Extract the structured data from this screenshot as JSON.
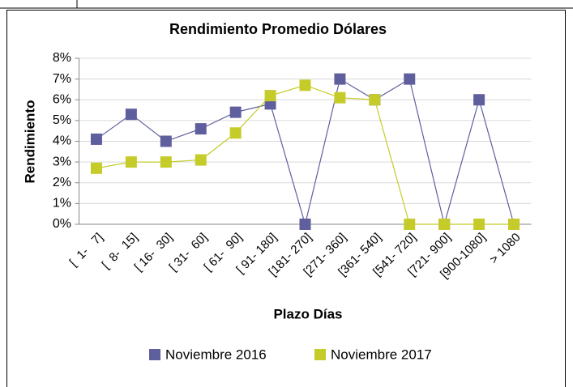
{
  "chart_data": {
    "type": "line",
    "title": "Rendimiento Promedio Dólares",
    "x_label": "Plazo Días",
    "y_label": "Rendimiento",
    "categories": [
      "[  1-   7]",
      "[  8-  15]",
      "[ 16-  30]",
      "[ 31-  60]",
      "[ 61-  90]",
      "[ 91- 180]",
      "[181- 270]",
      "[271- 360]",
      "[361- 540]",
      "[541- 720]",
      "[721- 900]",
      "[900-1080]",
      "> 1080"
    ],
    "series": [
      {
        "name": "Noviembre 2016",
        "color": "#5f5f9e",
        "values": [
          4.1,
          5.3,
          4.0,
          4.6,
          5.4,
          5.8,
          0,
          7.0,
          6.0,
          7.0,
          0,
          6.0,
          0
        ]
      },
      {
        "name": "Noviembre 2017",
        "color": "#c5cc2a",
        "values": [
          2.7,
          3.0,
          3.0,
          3.1,
          4.4,
          6.2,
          6.7,
          6.1,
          6.0,
          0,
          0,
          0,
          0
        ]
      }
    ],
    "ylim": [
      0,
      8
    ],
    "yticks": [
      {
        "value": 0,
        "label": "0%"
      },
      {
        "value": 1,
        "label": "1%"
      },
      {
        "value": 2,
        "label": "2%"
      },
      {
        "value": 3,
        "label": "3%"
      },
      {
        "value": 4,
        "label": "4%"
      },
      {
        "value": 5,
        "label": "5%"
      },
      {
        "value": 6,
        "label": "6%"
      },
      {
        "value": 7,
        "label": "7%"
      },
      {
        "value": 8,
        "label": "8%"
      }
    ],
    "grid": true,
    "legend": "bottom"
  }
}
